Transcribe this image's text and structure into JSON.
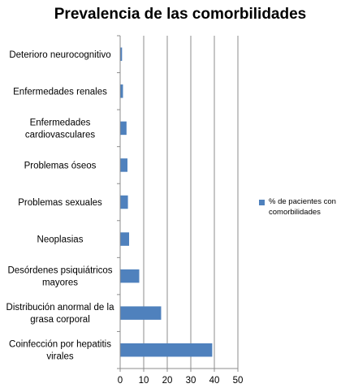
{
  "chart_data": {
    "type": "bar",
    "orientation": "horizontal",
    "title": "Prevalencia de las comorbilidades",
    "categories": [
      "Deterioro neurocognitivo",
      "Enfermedades renales",
      "Enfermedades cardiovasculares",
      "Problemas óseos",
      "Problemas sexuales",
      "Neoplasias",
      "Desórdenes psiquiátricos mayores",
      "Distribución anormal de la grasa corporal",
      "Coinfección por hepatitis virales"
    ],
    "category_lines": [
      [
        "Deterioro neurocognitivo"
      ],
      [
        "Enfermedades renales"
      ],
      [
        "Enfermedades",
        "cardiovasculares"
      ],
      [
        "Problemas óseos"
      ],
      [
        "Problemas sexuales"
      ],
      [
        "Neoplasias"
      ],
      [
        "Desórdenes psiquiátricos",
        "mayores"
      ],
      [
        "Distribución anormal de la",
        "grasa corporal"
      ],
      [
        "Coinfección por hepatitis",
        "virales"
      ]
    ],
    "series": [
      {
        "name": "% de pacientes con comorbilidades",
        "values": [
          0.8,
          1.2,
          2.7,
          3.1,
          3.3,
          3.8,
          8.1,
          17.4,
          39.1
        ],
        "color": "#4f81bd"
      }
    ],
    "legend_lines": [
      "% de pacientes con",
      "comorbilidades"
    ],
    "xlim": [
      0,
      50
    ],
    "xticks": [
      "0",
      "10",
      "20",
      "30",
      "40",
      "50"
    ],
    "xtick_values": [
      0,
      10,
      20,
      30,
      40,
      50
    ],
    "grid": "vertical",
    "legend_position": "right"
  }
}
